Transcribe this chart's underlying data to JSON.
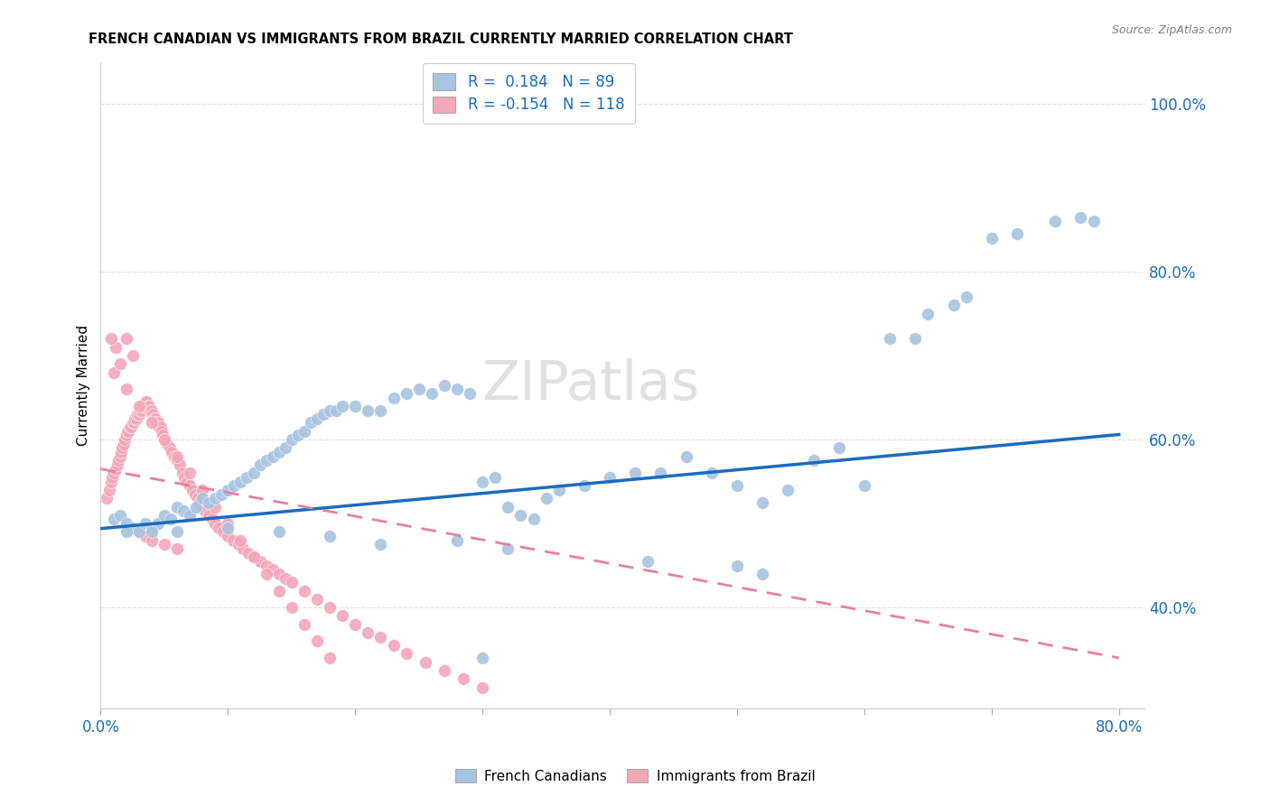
{
  "title": "FRENCH CANADIAN VS IMMIGRANTS FROM BRAZIL CURRENTLY MARRIED CORRELATION CHART",
  "source": "Source: ZipAtlas.com",
  "ylabel": "Currently Married",
  "ytick_labels": [
    "40.0%",
    "60.0%",
    "80.0%",
    "100.0%"
  ],
  "ytick_values": [
    0.4,
    0.6,
    0.8,
    1.0
  ],
  "xlim": [
    0.0,
    0.82
  ],
  "ylim": [
    0.28,
    1.05
  ],
  "legend_text_1": "R =  0.184   N = 89",
  "legend_text_2": "R = -0.154   N = 118",
  "blue_color": "#a8c4e0",
  "pink_color": "#f4a7b9",
  "blue_line_color": "#1a6bbf",
  "pink_line_color": "#e87fa0",
  "blue_scatter_x": [
    0.01,
    0.015,
    0.02,
    0.025,
    0.03,
    0.035,
    0.04,
    0.045,
    0.05,
    0.055,
    0.06,
    0.065,
    0.07,
    0.075,
    0.08,
    0.085,
    0.09,
    0.095,
    0.1,
    0.105,
    0.11,
    0.115,
    0.12,
    0.125,
    0.13,
    0.135,
    0.14,
    0.145,
    0.15,
    0.155,
    0.16,
    0.165,
    0.17,
    0.175,
    0.18,
    0.185,
    0.19,
    0.2,
    0.21,
    0.22,
    0.23,
    0.24,
    0.25,
    0.26,
    0.27,
    0.28,
    0.29,
    0.3,
    0.31,
    0.32,
    0.33,
    0.34,
    0.35,
    0.36,
    0.38,
    0.4,
    0.42,
    0.44,
    0.46,
    0.48,
    0.5,
    0.52,
    0.54,
    0.56,
    0.58,
    0.6,
    0.62,
    0.64,
    0.65,
    0.67,
    0.68,
    0.7,
    0.72,
    0.75,
    0.77,
    0.78,
    0.5,
    0.52,
    0.43,
    0.3,
    0.32,
    0.28,
    0.22,
    0.18,
    0.14,
    0.1,
    0.06,
    0.04,
    0.02
  ],
  "blue_scatter_y": [
    0.505,
    0.51,
    0.5,
    0.495,
    0.49,
    0.5,
    0.495,
    0.5,
    0.51,
    0.505,
    0.52,
    0.515,
    0.51,
    0.52,
    0.53,
    0.525,
    0.53,
    0.535,
    0.54,
    0.545,
    0.55,
    0.555,
    0.56,
    0.57,
    0.575,
    0.58,
    0.585,
    0.59,
    0.6,
    0.605,
    0.61,
    0.62,
    0.625,
    0.63,
    0.635,
    0.635,
    0.64,
    0.64,
    0.635,
    0.635,
    0.65,
    0.655,
    0.66,
    0.655,
    0.665,
    0.66,
    0.655,
    0.55,
    0.555,
    0.52,
    0.51,
    0.505,
    0.53,
    0.54,
    0.545,
    0.555,
    0.56,
    0.56,
    0.58,
    0.56,
    0.545,
    0.525,
    0.54,
    0.575,
    0.59,
    0.545,
    0.72,
    0.72,
    0.75,
    0.76,
    0.77,
    0.84,
    0.845,
    0.86,
    0.865,
    0.86,
    0.45,
    0.44,
    0.455,
    0.34,
    0.47,
    0.48,
    0.475,
    0.485,
    0.49,
    0.495,
    0.49,
    0.49,
    0.49
  ],
  "pink_scatter_x": [
    0.005,
    0.007,
    0.008,
    0.009,
    0.01,
    0.012,
    0.013,
    0.014,
    0.015,
    0.016,
    0.017,
    0.018,
    0.019,
    0.02,
    0.021,
    0.022,
    0.023,
    0.024,
    0.025,
    0.026,
    0.027,
    0.028,
    0.029,
    0.03,
    0.031,
    0.032,
    0.033,
    0.034,
    0.035,
    0.036,
    0.037,
    0.038,
    0.039,
    0.04,
    0.041,
    0.042,
    0.043,
    0.044,
    0.045,
    0.046,
    0.047,
    0.048,
    0.049,
    0.05,
    0.052,
    0.054,
    0.056,
    0.058,
    0.06,
    0.062,
    0.064,
    0.066,
    0.068,
    0.07,
    0.072,
    0.074,
    0.076,
    0.078,
    0.08,
    0.082,
    0.085,
    0.088,
    0.09,
    0.093,
    0.096,
    0.1,
    0.104,
    0.108,
    0.112,
    0.116,
    0.12,
    0.125,
    0.13,
    0.135,
    0.14,
    0.145,
    0.15,
    0.16,
    0.17,
    0.18,
    0.19,
    0.2,
    0.21,
    0.22,
    0.23,
    0.24,
    0.255,
    0.27,
    0.285,
    0.3,
    0.01,
    0.02,
    0.03,
    0.04,
    0.05,
    0.06,
    0.07,
    0.08,
    0.09,
    0.1,
    0.11,
    0.12,
    0.13,
    0.14,
    0.15,
    0.16,
    0.17,
    0.18,
    0.02,
    0.025,
    0.015,
    0.012,
    0.008,
    0.03,
    0.035,
    0.04,
    0.05,
    0.06
  ],
  "pink_scatter_y": [
    0.53,
    0.54,
    0.55,
    0.555,
    0.56,
    0.565,
    0.57,
    0.575,
    0.58,
    0.585,
    0.59,
    0.595,
    0.6,
    0.605,
    0.61,
    0.61,
    0.615,
    0.615,
    0.62,
    0.62,
    0.625,
    0.625,
    0.63,
    0.63,
    0.635,
    0.635,
    0.64,
    0.64,
    0.645,
    0.645,
    0.64,
    0.64,
    0.635,
    0.635,
    0.63,
    0.625,
    0.625,
    0.62,
    0.62,
    0.615,
    0.615,
    0.61,
    0.605,
    0.6,
    0.595,
    0.59,
    0.585,
    0.58,
    0.575,
    0.57,
    0.56,
    0.555,
    0.55,
    0.545,
    0.54,
    0.535,
    0.53,
    0.525,
    0.52,
    0.515,
    0.51,
    0.505,
    0.5,
    0.495,
    0.49,
    0.485,
    0.48,
    0.475,
    0.47,
    0.465,
    0.46,
    0.455,
    0.45,
    0.445,
    0.44,
    0.435,
    0.43,
    0.42,
    0.41,
    0.4,
    0.39,
    0.38,
    0.37,
    0.365,
    0.355,
    0.345,
    0.335,
    0.325,
    0.315,
    0.305,
    0.68,
    0.66,
    0.64,
    0.62,
    0.6,
    0.58,
    0.56,
    0.54,
    0.52,
    0.5,
    0.48,
    0.46,
    0.44,
    0.42,
    0.4,
    0.38,
    0.36,
    0.34,
    0.72,
    0.7,
    0.69,
    0.71,
    0.72,
    0.49,
    0.485,
    0.48,
    0.475,
    0.47
  ],
  "blue_trendline_x": [
    0.0,
    0.8
  ],
  "blue_trendline_y": [
    0.494,
    0.606
  ],
  "pink_trendline_x": [
    0.0,
    0.8
  ],
  "pink_trendline_y": [
    0.565,
    0.34
  ],
  "watermark": "ZIPatlas",
  "grid_color": "#e0e0e0",
  "background_color": "#ffffff",
  "legend1_label": "French Canadians",
  "legend2_label": "Immigrants from Brazil"
}
